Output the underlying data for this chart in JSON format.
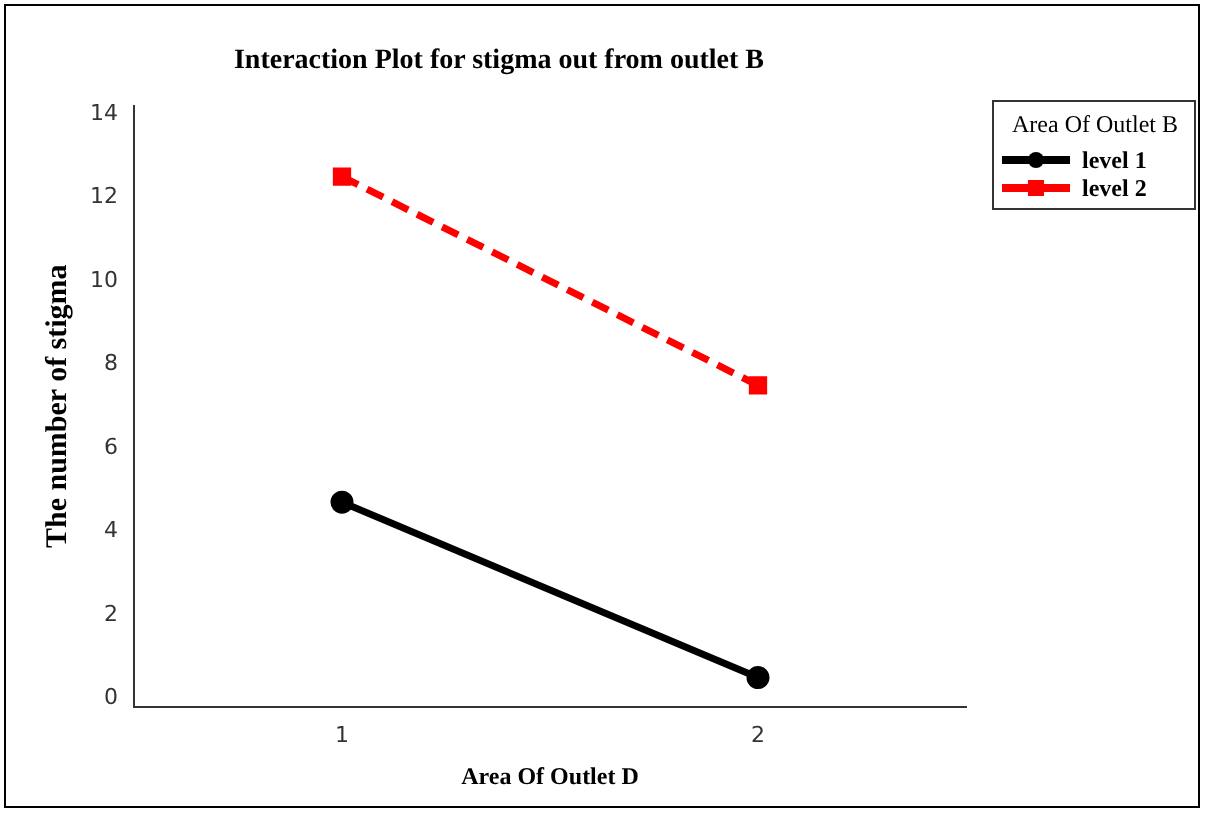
{
  "chart_data": {
    "type": "line",
    "title": "Interaction Plot for stigma out from outlet B",
    "xlabel": "Area Of Outlet D",
    "ylabel": "The number of stigma",
    "legend_title": "Area Of Outlet B",
    "categories": [
      "1",
      "2"
    ],
    "series": [
      {
        "name": "level 1",
        "color": "#000000",
        "values": [
          4.7,
          0.5
        ],
        "marker": "circle",
        "line_style": "solid"
      },
      {
        "name": "level 2",
        "color": "#ff0000",
        "values": [
          12.5,
          7.5
        ],
        "marker": "square",
        "line_style": "dashed"
      }
    ],
    "ylim": [
      -0.2,
      14.2
    ],
    "yticks": [
      0,
      2,
      4,
      6,
      8,
      10,
      12,
      14
    ],
    "grid": false,
    "legend": "top right"
  }
}
